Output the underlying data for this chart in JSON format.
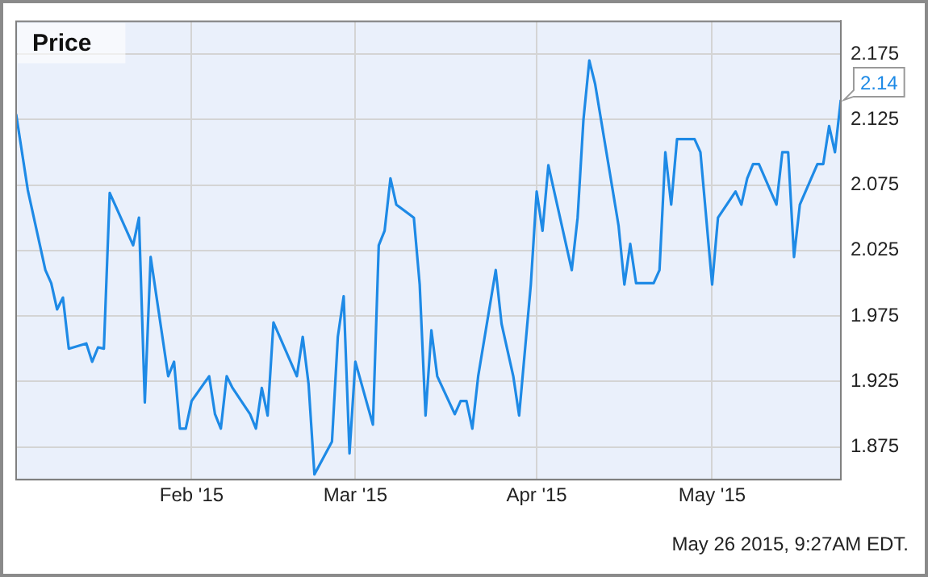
{
  "chart_data": {
    "type": "line",
    "title": "Price",
    "x": [
      "2015-01-02",
      "2015-01-04",
      "2015-01-07",
      "2015-01-08",
      "2015-01-09",
      "2015-01-10",
      "2015-01-11",
      "2015-01-14",
      "2015-01-15",
      "2015-01-16",
      "2015-01-17",
      "2015-01-18",
      "2015-01-22",
      "2015-01-23",
      "2015-01-24",
      "2015-01-25",
      "2015-01-28",
      "2015-01-29",
      "2015-01-30",
      "2015-01-31",
      "2015-02-01",
      "2015-02-04",
      "2015-02-05",
      "2015-02-06",
      "2015-02-07",
      "2015-02-08",
      "2015-02-11",
      "2015-02-12",
      "2015-02-13",
      "2015-02-14",
      "2015-02-15",
      "2015-02-19",
      "2015-02-20",
      "2015-02-21",
      "2015-02-22",
      "2015-02-25",
      "2015-02-26",
      "2015-02-27",
      "2015-02-28",
      "2015-03-01",
      "2015-03-04",
      "2015-03-05",
      "2015-03-06",
      "2015-03-07",
      "2015-03-08",
      "2015-03-11",
      "2015-03-12",
      "2015-03-13",
      "2015-03-14",
      "2015-03-15",
      "2015-03-18",
      "2015-03-19",
      "2015-03-20",
      "2015-03-21",
      "2015-03-22",
      "2015-03-25",
      "2015-03-26",
      "2015-03-28",
      "2015-03-29",
      "2015-03-31",
      "2015-04-01",
      "2015-04-02",
      "2015-04-03",
      "2015-04-07",
      "2015-04-08",
      "2015-04-09",
      "2015-04-10",
      "2015-04-11",
      "2015-04-15",
      "2015-04-16",
      "2015-04-17",
      "2015-04-18",
      "2015-04-21",
      "2015-04-22",
      "2015-04-23",
      "2015-04-24",
      "2015-04-25",
      "2015-04-28",
      "2015-04-29",
      "2015-05-01",
      "2015-05-02",
      "2015-05-05",
      "2015-05-06",
      "2015-05-07",
      "2015-05-08",
      "2015-05-09",
      "2015-05-12",
      "2015-05-13",
      "2015-05-14",
      "2015-05-15",
      "2015-05-16",
      "2015-05-19",
      "2015-05-20",
      "2015-05-21",
      "2015-05-22",
      "2015-05-23"
    ],
    "series": [
      {
        "color": "#1e8ae6",
        "values": [
          2.129,
          2.071,
          2.01,
          2.0,
          1.98,
          1.989,
          1.95,
          1.954,
          1.94,
          1.951,
          1.95,
          2.069,
          2.029,
          2.05,
          1.909,
          2.02,
          1.929,
          1.94,
          1.889,
          1.889,
          1.91,
          1.929,
          1.9,
          1.889,
          1.929,
          1.92,
          1.9,
          1.889,
          1.92,
          1.899,
          1.97,
          1.929,
          1.959,
          1.923,
          1.854,
          1.879,
          1.959,
          1.99,
          1.87,
          1.94,
          1.892,
          2.029,
          2.04,
          2.08,
          2.06,
          2.05,
          1.999,
          1.899,
          1.964,
          1.929,
          1.9,
          1.91,
          1.91,
          1.889,
          1.929,
          2.01,
          1.969,
          1.929,
          1.899,
          1.999,
          2.07,
          2.04,
          2.09,
          2.01,
          2.05,
          2.125,
          2.17,
          2.152,
          2.044,
          1.999,
          2.03,
          2.0,
          2.0,
          2.01,
          2.1,
          2.06,
          2.11,
          2.11,
          2.1,
          1.999,
          2.05,
          2.07,
          2.06,
          2.08,
          2.091,
          2.091,
          2.06,
          2.1,
          2.1,
          2.02,
          2.06,
          2.091,
          2.091,
          2.12,
          2.1,
          2.14
        ]
      }
    ],
    "xlim": [
      "2015-01-02",
      "2015-05-23"
    ],
    "xticks": [
      {
        "value": "2015-02-01",
        "label": "Feb '15"
      },
      {
        "value": "2015-03-01",
        "label": "Mar '15"
      },
      {
        "value": "2015-04-01",
        "label": "Apr '15"
      },
      {
        "value": "2015-05-01",
        "label": "May '15"
      }
    ],
    "ylim": [
      1.85,
      2.2
    ],
    "yticks": [
      1.875,
      1.925,
      1.975,
      2.025,
      2.075,
      2.125,
      2.175
    ],
    "grid": true,
    "legend": false,
    "marker": "none",
    "line_style": "solid",
    "annotations": [
      {
        "text": "2.14",
        "x": "2015-05-23",
        "y": 2.14
      },
      "May 26 2015, 9:27AM EDT."
    ]
  }
}
